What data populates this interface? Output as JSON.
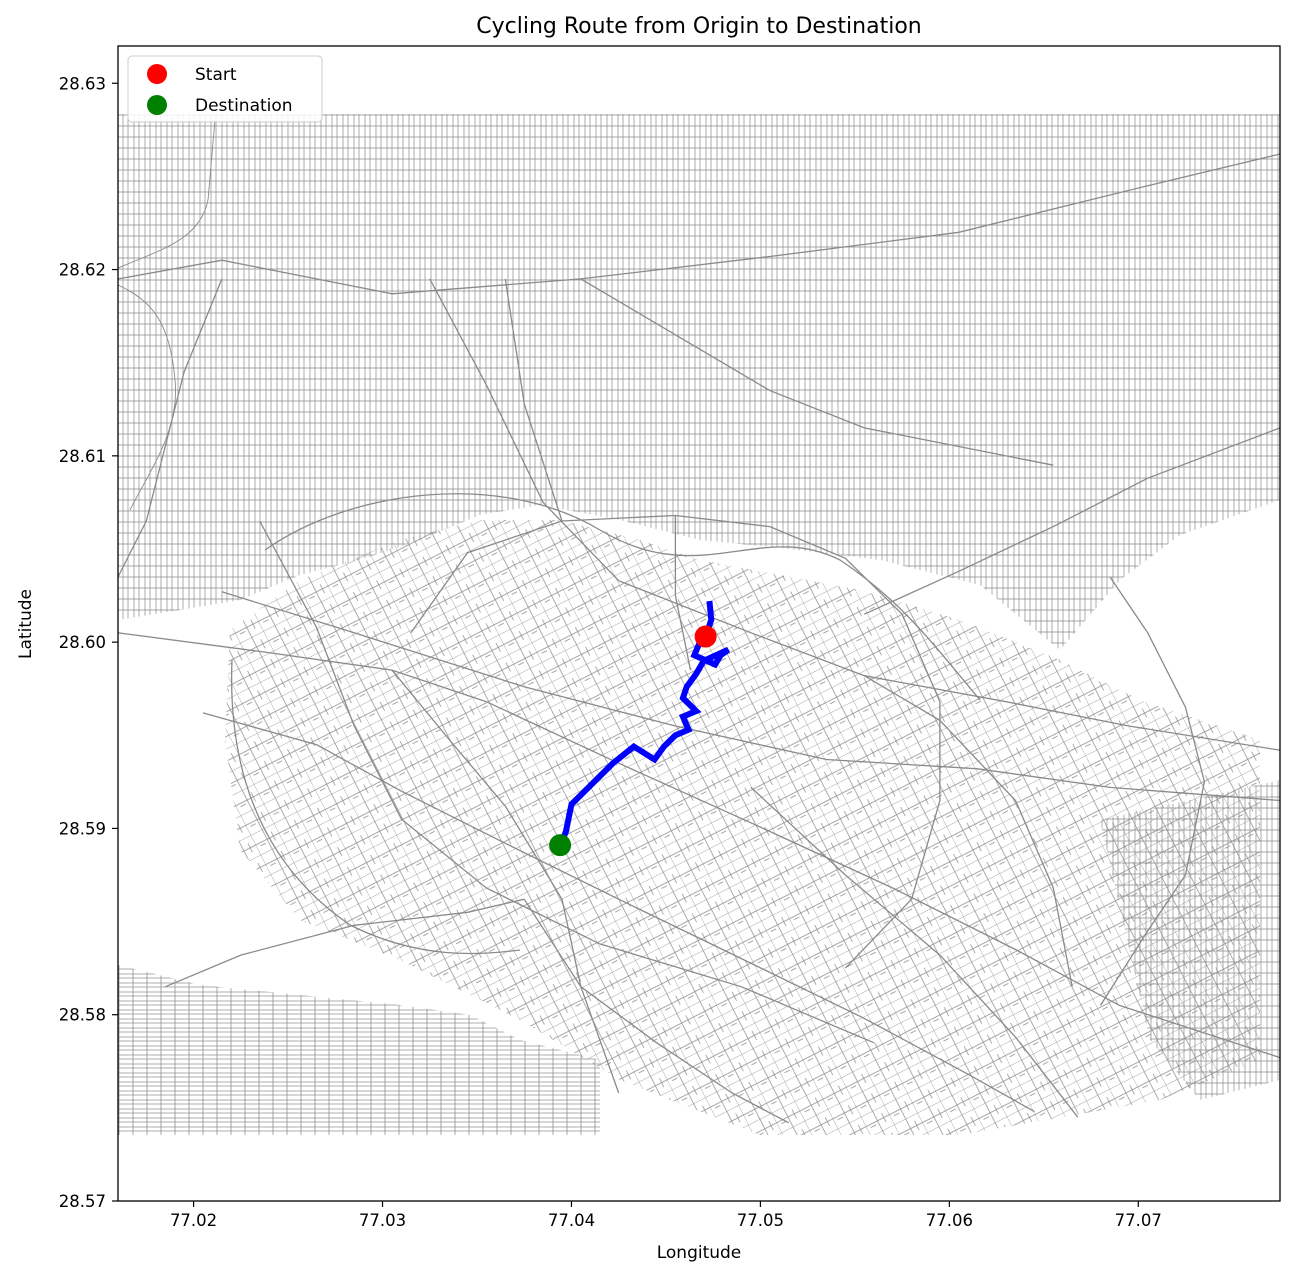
{
  "chart_data": {
    "type": "map",
    "title": "Cycling Route from Origin to Destination",
    "xlabel": "Longitude",
    "ylabel": "Latitude",
    "xlim": [
      77.016,
      77.0775
    ],
    "ylim": [
      28.57,
      28.632
    ],
    "x_ticks": [
      77.02,
      77.03,
      77.04,
      77.05,
      77.06,
      77.07
    ],
    "y_ticks": [
      28.57,
      28.58,
      28.59,
      28.6,
      28.61,
      28.62,
      28.63
    ],
    "x_tick_labels": [
      "77.02",
      "77.03",
      "77.04",
      "77.05",
      "77.06",
      "77.07"
    ],
    "y_tick_labels": [
      "28.57",
      "28.58",
      "28.59",
      "28.60",
      "28.61",
      "28.62",
      "28.63"
    ],
    "grid": false,
    "legend_position": "top-left",
    "legend": [
      {
        "label": "Start",
        "color": "#ff0000"
      },
      {
        "label": "Destination",
        "color": "#008000"
      }
    ],
    "start": {
      "lon": 77.0471,
      "lat": 28.6003
    },
    "destination": {
      "lon": 77.0394,
      "lat": 28.5891
    },
    "route_color": "#0000ff",
    "road_color": "#8a8a8a",
    "route": [
      [
        77.0473,
        28.6022
      ],
      [
        77.0474,
        28.6012
      ],
      [
        77.0471,
        28.6003
      ],
      [
        77.0468,
        28.6
      ],
      [
        77.0465,
        28.5993
      ],
      [
        77.0476,
        28.5988
      ],
      [
        77.0479,
        28.5993
      ],
      [
        77.0483,
        28.5996
      ],
      [
        77.047,
        28.599
      ],
      [
        77.0466,
        28.5983
      ],
      [
        77.0461,
        28.5976
      ],
      [
        77.0459,
        28.597
      ],
      [
        77.0466,
        28.5963
      ],
      [
        77.0459,
        28.596
      ],
      [
        77.0462,
        28.5953
      ],
      [
        77.0455,
        28.595
      ],
      [
        77.0449,
        28.5944
      ],
      [
        77.0444,
        28.5937
      ],
      [
        77.0433,
        28.5944
      ],
      [
        77.0422,
        28.5935
      ],
      [
        77.0411,
        28.5924
      ],
      [
        77.04,
        28.5913
      ],
      [
        77.0397,
        28.5898
      ],
      [
        77.0394,
        28.5891
      ]
    ],
    "major_roads": [
      [
        [
          77.016,
          28.6195
        ],
        [
          77.0215,
          28.6205
        ],
        [
          77.0265,
          28.6195
        ],
        [
          77.0305,
          28.6187
        ],
        [
          77.0405,
          28.6195
        ],
        [
          77.0505,
          28.6207
        ],
        [
          77.0605,
          28.622
        ],
        [
          77.0705,
          28.6245
        ],
        [
          77.0775,
          28.6262
        ]
      ],
      [
        [
          77.016,
          28.6005
        ],
        [
          77.0235,
          28.5995
        ],
        [
          77.0305,
          28.5985
        ],
        [
          77.0355,
          28.5968
        ],
        [
          77.0425,
          28.5935
        ],
        [
          77.0495,
          28.5903
        ],
        [
          77.057,
          28.5868
        ],
        [
          77.0635,
          28.5835
        ],
        [
          77.069,
          28.5805
        ],
        [
          77.0775,
          28.5777
        ]
      ],
      [
        [
          77.0205,
          28.5962
        ],
        [
          77.0265,
          28.5945
        ],
        [
          77.031,
          28.592
        ],
        [
          77.0365,
          28.5892
        ],
        [
          77.0425,
          28.5862
        ],
        [
          77.048,
          28.5835
        ],
        [
          77.0555,
          28.5798
        ],
        [
          77.061,
          28.5768
        ],
        [
          77.0645,
          28.5748
        ]
      ],
      [
        [
          77.0215,
          28.6027
        ],
        [
          77.0285,
          28.6005
        ],
        [
          77.0375,
          28.5976
        ],
        [
          77.0455,
          28.5955
        ],
        [
          77.0535,
          28.5937
        ],
        [
          77.0615,
          28.5932
        ],
        [
          77.0685,
          28.5922
        ],
        [
          77.0775,
          28.5915
        ]
      ],
      [
        [
          77.0325,
          28.6195
        ],
        [
          77.0355,
          28.6138
        ],
        [
          77.0385,
          28.6075
        ],
        [
          77.0425,
          28.6033
        ],
        [
          77.0495,
          28.6005
        ],
        [
          77.0555,
          28.5982
        ],
        [
          77.063,
          28.5968
        ],
        [
          77.0695,
          28.5955
        ],
        [
          77.0775,
          28.5942
        ]
      ],
      [
        [
          77.0235,
          28.6065
        ],
        [
          77.0265,
          28.6008
        ],
        [
          77.0285,
          28.5955
        ],
        [
          77.031,
          28.5905
        ],
        [
          77.0355,
          28.5868
        ],
        [
          77.0415,
          28.5838
        ],
        [
          77.049,
          28.5815
        ],
        [
          77.056,
          28.5785
        ]
      ],
      [
        [
          77.0315,
          28.6005
        ],
        [
          77.0345,
          28.6048
        ],
        [
          77.0395,
          28.6065
        ],
        [
          77.0455,
          28.6068
        ],
        [
          77.0505,
          28.6062
        ],
        [
          77.0545,
          28.6045
        ],
        [
          77.0575,
          28.6015
        ],
        [
          77.0595,
          28.5968
        ],
        [
          77.0595,
          28.5915
        ],
        [
          77.058,
          28.5862
        ],
        [
          77.0545,
          28.5825
        ]
      ],
      [
        [
          77.0305,
          28.5985
        ],
        [
          77.0335,
          28.5948
        ],
        [
          77.0365,
          28.5912
        ],
        [
          77.0395,
          28.5862
        ],
        [
          77.0405,
          28.5815
        ],
        [
          77.0425,
          28.5758
        ]
      ],
      [
        [
          77.0495,
          28.5922
        ],
        [
          77.0545,
          28.5875
        ],
        [
          77.0595,
          28.5832
        ],
        [
          77.0635,
          28.5788
        ],
        [
          77.0668,
          28.5745
        ]
      ],
      [
        [
          77.0685,
          28.6035
        ],
        [
          77.0705,
          28.6005
        ],
        [
          77.0725,
          28.5965
        ],
        [
          77.0735,
          28.5925
        ],
        [
          77.0725,
          28.5875
        ],
        [
          77.0705,
          28.5845
        ],
        [
          77.068,
          28.5805
        ]
      ],
      [
        [
          77.0555,
          28.6015
        ],
        [
          77.0605,
          28.6038
        ],
        [
          77.0655,
          28.6062
        ],
        [
          77.0705,
          28.6088
        ],
        [
          77.0775,
          28.6115
        ]
      ],
      [
        [
          77.0215,
          28.6195
        ],
        [
          77.0195,
          28.6145
        ],
        [
          77.0185,
          28.6105
        ],
        [
          77.0175,
          28.6065
        ],
        [
          77.016,
          28.6035
        ]
      ],
      [
        [
          77.0185,
          28.5815
        ],
        [
          77.0225,
          28.5832
        ],
        [
          77.0285,
          28.5848
        ],
        [
          77.0345,
          28.5855
        ],
        [
          77.0375,
          28.5862
        ]
      ],
      [
        [
          77.0375,
          28.5862
        ],
        [
          77.0405,
          28.5815
        ],
        [
          77.0445,
          28.5785
        ],
        [
          77.0485,
          28.5758
        ],
        [
          77.0515,
          28.5742
        ]
      ],
      [
        [
          77.0365,
          28.6195
        ],
        [
          77.0375,
          28.6128
        ],
        [
          77.0395,
          28.6065
        ]
      ],
      [
        [
          77.0455,
          28.6068
        ],
        [
          77.0455,
          28.6025
        ],
        [
          77.0463,
          28.5985
        ]
      ],
      [
        [
          77.0555,
          28.5982
        ],
        [
          77.0595,
          28.5958
        ],
        [
          77.0635,
          28.5915
        ],
        [
          77.0655,
          28.5868
        ],
        [
          77.0665,
          28.5815
        ]
      ],
      [
        [
          77.0405,
          28.6195
        ],
        [
          77.0455,
          28.6165
        ],
        [
          77.0505,
          28.6135
        ],
        [
          77.0555,
          28.6115
        ],
        [
          77.0605,
          28.6105
        ],
        [
          77.0655,
          28.6095
        ]
      ]
    ]
  }
}
